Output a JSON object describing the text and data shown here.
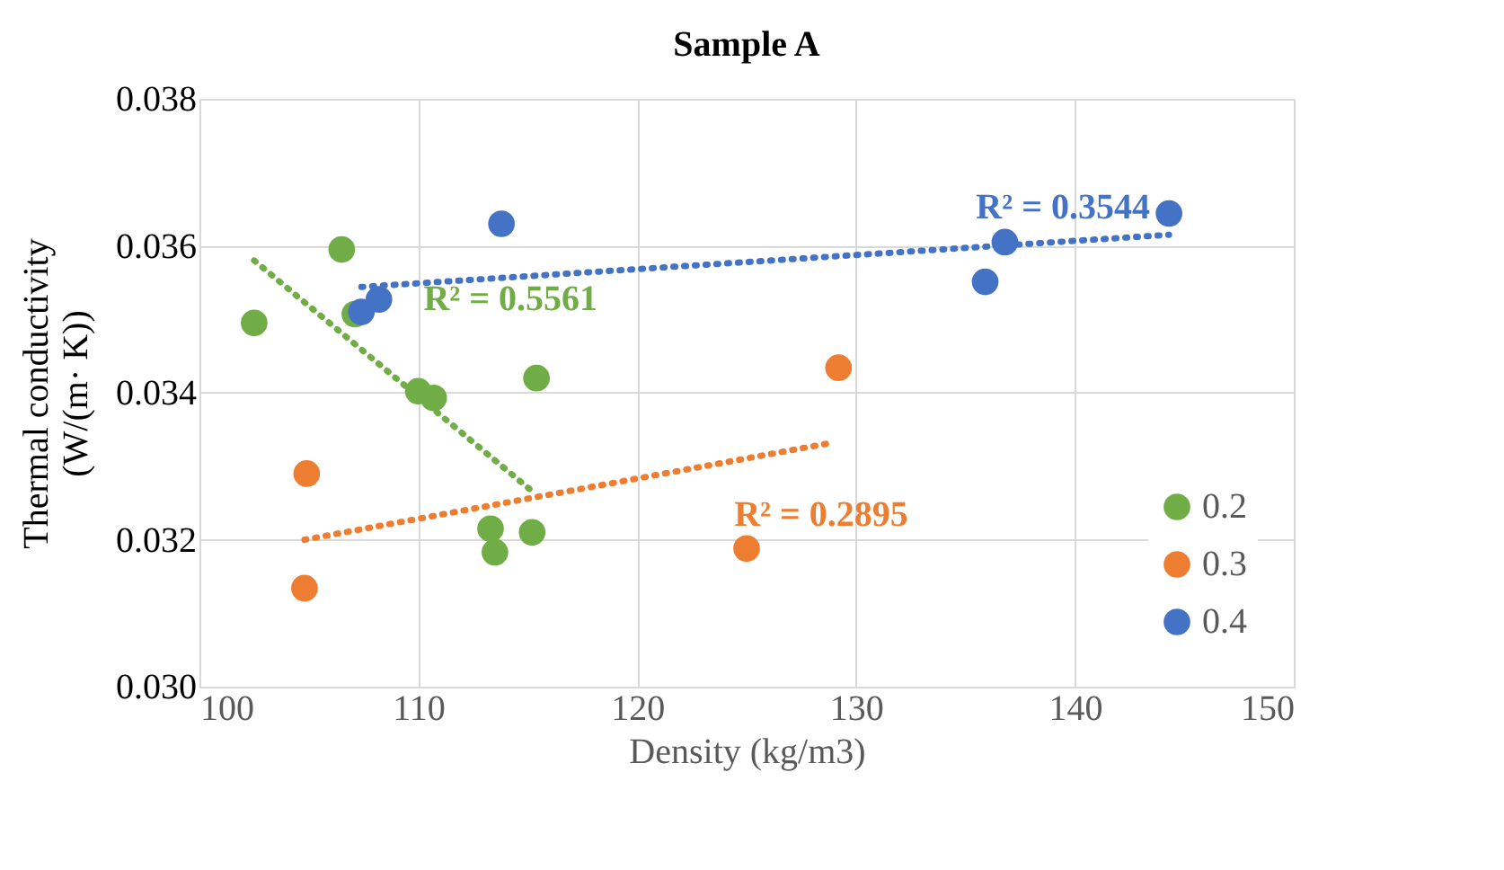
{
  "chart_data": {
    "type": "scatter",
    "title": "Sample A",
    "xlabel": "Density (kg/m3)",
    "ylabel": "Thermal conductivity\n(W/(m· K))",
    "xlim": [
      100,
      150
    ],
    "xticks": [
      100,
      110,
      120,
      130,
      140,
      150
    ],
    "ylim": [
      0.03,
      0.038
    ],
    "yticks": [
      {
        "value": 0.03,
        "label": "0.030"
      },
      {
        "value": 0.032,
        "label": "0.032"
      },
      {
        "value": 0.034,
        "label": "0.034"
      },
      {
        "value": 0.036,
        "label": "0.036"
      },
      {
        "value": 0.038,
        "label": "0.038"
      }
    ],
    "grid": true,
    "legend": "bottom right",
    "series": [
      {
        "name": "0.2",
        "color": "#70ad47",
        "marker": "circle",
        "x": [
          102.5,
          106.5,
          107.1,
          110.0,
          110.7,
          115.4,
          113.3,
          113.5,
          115.2
        ],
        "values": [
          0.03495,
          0.03595,
          0.03507,
          0.03402,
          0.03393,
          0.0342,
          0.03215,
          0.03183,
          0.0321
        ]
      },
      {
        "name": "0.3",
        "color": "#ed7d31",
        "marker": "circle",
        "x": [
          104.9,
          104.8,
          125.0,
          129.2
        ],
        "values": [
          0.0329,
          0.03134,
          0.03188,
          0.03434
        ]
      },
      {
        "name": "0.4",
        "color": "#4472c4",
        "marker": "circle",
        "x": [
          113.8,
          107.4,
          108.2,
          135.9,
          136.8,
          144.3
        ],
        "values": [
          0.0363,
          0.0351,
          0.03527,
          0.03551,
          0.03605,
          0.03644
        ]
      },
      {
        "type": "line",
        "color": "#70ad47",
        "line_style": "dotted",
        "marker": "none",
        "x": [
          102.5,
          115.2
        ],
        "values": [
          0.0358,
          0.03266
        ]
      },
      {
        "type": "line",
        "color": "#ed7d31",
        "line_style": "dotted",
        "marker": "none",
        "x": [
          104.8,
          128.9
        ],
        "values": [
          0.032,
          0.03332
        ]
      },
      {
        "type": "line",
        "color": "#4472c4",
        "line_style": "dotted",
        "marker": "none",
        "x": [
          107.4,
          144.3
        ],
        "values": [
          0.03544,
          0.03615
        ]
      }
    ],
    "annotations": [
      "R² = 0.5561",
      "R² = 0.2895",
      "R² = 0.3544"
    ]
  }
}
